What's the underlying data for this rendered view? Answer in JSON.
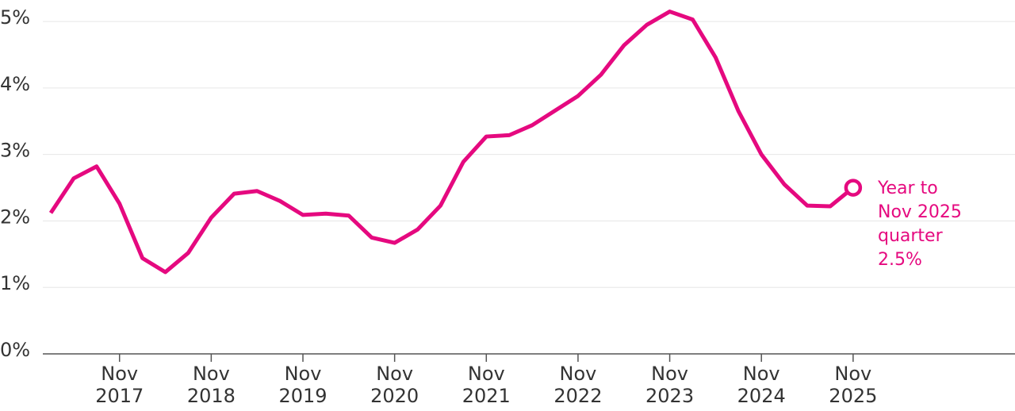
{
  "chart_data": {
    "type": "line",
    "categories": [
      null,
      null,
      null,
      "Nov 2017",
      null,
      null,
      null,
      "Nov 2018",
      null,
      null,
      null,
      "Nov 2019",
      null,
      null,
      null,
      "Nov 2020",
      null,
      null,
      null,
      "Nov 2021",
      null,
      null,
      null,
      "Nov 2022",
      null,
      null,
      null,
      "Nov 2023",
      null,
      null,
      null,
      "Nov 2024",
      null,
      null,
      null,
      "Nov 2025"
    ],
    "series": [
      {
        "color": "#e5097f",
        "values": [
          2.12,
          2.64,
          2.82,
          2.26,
          1.44,
          1.23,
          1.52,
          2.05,
          2.41,
          2.45,
          2.3,
          2.09,
          2.11,
          2.08,
          1.75,
          1.67,
          1.87,
          2.23,
          2.89,
          3.27,
          3.29,
          3.44,
          3.66,
          3.88,
          4.2,
          4.64,
          4.95,
          5.15,
          5.03,
          4.46,
          3.65,
          3.0,
          2.55,
          2.23,
          2.22,
          2.5
        ]
      }
    ],
    "ylim": [
      0,
      5.3
    ],
    "yticks": [
      {
        "value": 0,
        "label": "0%"
      },
      {
        "value": 1,
        "label": "1%"
      },
      {
        "value": 2,
        "label": "2%"
      },
      {
        "value": 3,
        "label": "3%"
      },
      {
        "value": 4,
        "label": "4%"
      },
      {
        "value": 5,
        "label": "5%"
      }
    ],
    "grid": true,
    "annotation": [
      "Year to",
      "Nov 2025",
      "quarter",
      "2.5%"
    ]
  }
}
